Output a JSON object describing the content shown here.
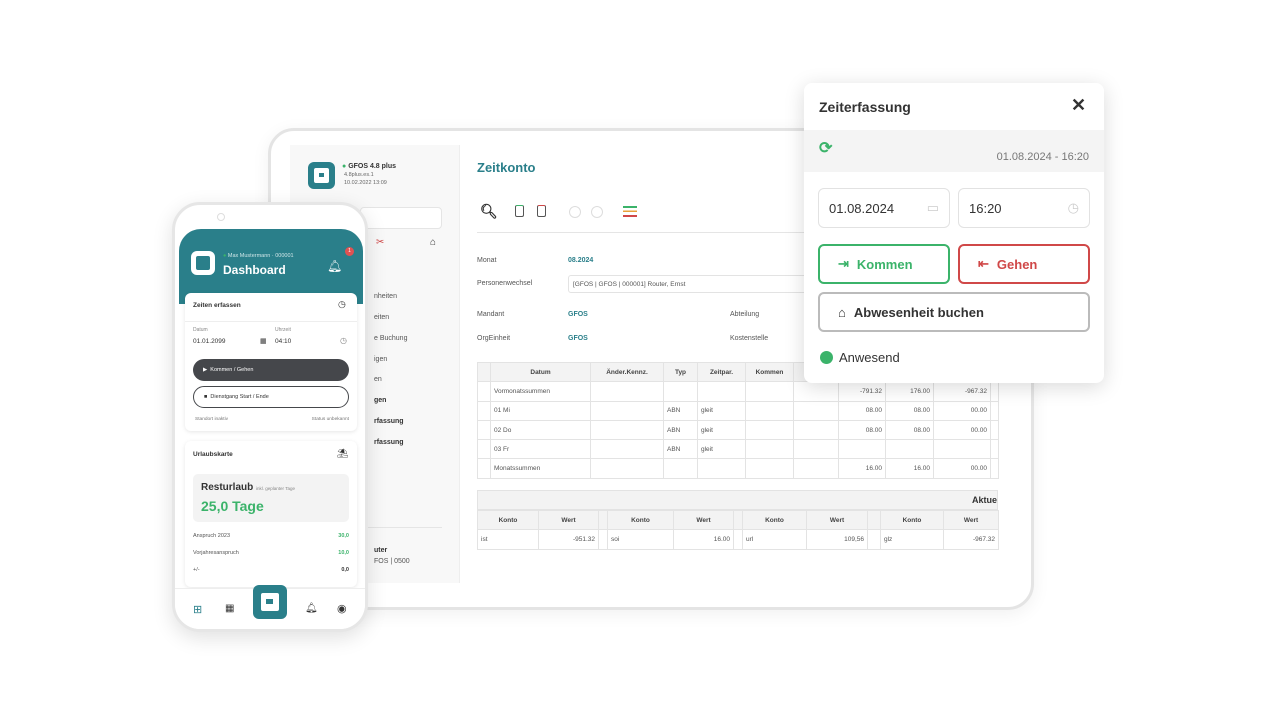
{
  "colors": {
    "brand": "#2a7f8a",
    "green": "#3bb36a",
    "red": "#d04848"
  },
  "desktop": {
    "sidebar": {
      "app_name": "GFOS 4.8 plus",
      "version": "4.8plus.es.1",
      "date": "10.02.2022 13:09",
      "items": [
        "nheiten",
        "eiten",
        "e Buchung",
        "igen",
        "en",
        "gen",
        "rfassung",
        "rfassung"
      ],
      "user_name": "uter",
      "user_sub": "FOS | 0500"
    },
    "title": "Zeitkonto",
    "form": {
      "monat_label": "Monat",
      "monat_value": "08.2024",
      "person_label": "Personenwechsel",
      "person_value": "[GFOS | GFOS | 000001] Router, Ernst",
      "mandant_label": "Mandant",
      "mandant_value": "GFOS",
      "abteilung_label": "Abteilung",
      "org_label": "OrgEinheit",
      "org_value": "GFOS",
      "kosten_label": "Kostenstelle"
    },
    "table": {
      "headers": [
        "",
        "Datum",
        "Änder.Kennz.",
        "Typ",
        "Zeitpar.",
        "Kommen",
        "",
        "",
        "",
        "",
        ""
      ],
      "rows": [
        [
          "",
          "Vormonatssummen",
          "",
          "",
          "",
          "",
          "",
          "-791.32",
          "176.00",
          "-967.32",
          ""
        ],
        [
          "",
          "01 Mi",
          "",
          "ABN",
          "gleit",
          "",
          "",
          "08.00",
          "08.00",
          "00.00",
          ""
        ],
        [
          "",
          "02 Do",
          "",
          "ABN",
          "gleit",
          "",
          "",
          "08.00",
          "08.00",
          "00.00",
          ""
        ],
        [
          "",
          "03 Fr",
          "",
          "ABN",
          "gleit",
          "",
          "",
          "",
          "",
          "",
          ""
        ],
        [
          "",
          "Monatssummen",
          "",
          "",
          "",
          "",
          "",
          "16.00",
          "16.00",
          "00.00",
          ""
        ]
      ]
    },
    "accounts": {
      "title": "Aktue",
      "headers": [
        "Konto",
        "Wert",
        "",
        "Konto",
        "Wert",
        "",
        "Konto",
        "Wert",
        "",
        "Konto",
        "Wert"
      ],
      "row": [
        "ist",
        "-951.32",
        "",
        "soi",
        "16.00",
        "",
        "url",
        "109,56",
        "",
        "glz",
        "-967.32"
      ]
    }
  },
  "phone": {
    "user": "Max Mustermann · 000001",
    "title": "Dashboard",
    "badge": "1",
    "zeiten": {
      "title": "Zeiten erfassen",
      "datum_label": "Datum",
      "datum": "01.01.2099",
      "uhrzeit_label": "Uhrzeit",
      "uhrzeit": "04:10",
      "btn1": "Kommen / Gehen",
      "btn2": "Dienstgang Start / Ende",
      "standort": "Standort inaktiv",
      "status": "Status unbekannt"
    },
    "urlaub": {
      "title": "Urlaubskarte",
      "rest_label": "Resturlaub",
      "rest_note": "inkl. geplanter Tage",
      "rest_value": "25,0 Tage",
      "rows": [
        {
          "label": "Anspruch 2023",
          "value": "30,0"
        },
        {
          "label": "Vorjahresanspruch",
          "value": "10,0"
        },
        {
          "label": "+/-",
          "value": "0,0"
        }
      ]
    }
  },
  "popup": {
    "title": "Zeiterfassung",
    "timestamp": "01.08.2024 - 16:20",
    "date": "01.08.2024",
    "time": "16:20",
    "kommen": "Kommen",
    "gehen": "Gehen",
    "absence": "Abwesenheit buchen",
    "status": "Anwesend"
  }
}
